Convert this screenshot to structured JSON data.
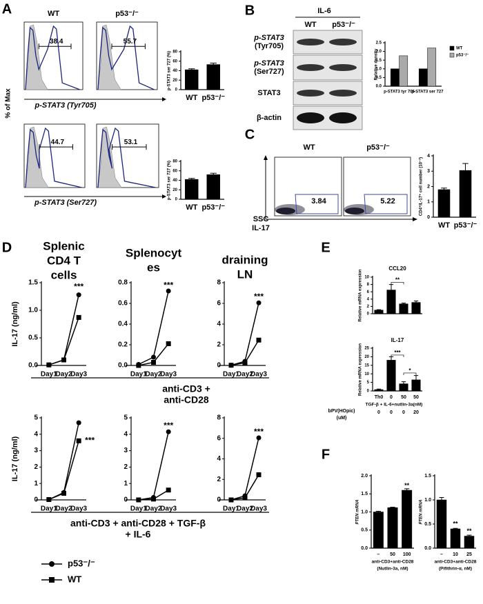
{
  "figure": {
    "panels": [
      "A",
      "B",
      "C",
      "D",
      "E",
      "F"
    ],
    "A": {
      "ylabel": "% of Max",
      "groups": [
        {
          "xlabel": "p-STAT3 (Tyr705)",
          "plots": [
            {
              "label": "WT",
              "gate": 38.4
            },
            {
              "label": "p53⁻/⁻",
              "gate": 55.7
            }
          ]
        },
        {
          "xlabel": "p-STAT3 (Ser727)",
          "plots": [
            {
              "gate": 44.7
            },
            {
              "gate": 53.1
            }
          ]
        }
      ]
    },
    "B": {
      "treatment": "IL-6",
      "columns": [
        "WT",
        "p53⁻/⁻"
      ],
      "rows": [
        [
          "p-STAT3",
          "(Tyr705)"
        ],
        [
          "p-STAT3",
          "(Ser727)"
        ],
        [
          "STAT3"
        ],
        [
          "β-actin"
        ]
      ]
    },
    "C": {
      "columns": [
        "WT",
        "p53⁻/⁻"
      ],
      "gates": [
        3.84,
        5.22
      ],
      "ylabel": "SSC",
      "xlabel": "IL-17"
    },
    "D": {
      "groups": [
        [
          "anti-CD3 +",
          "anti-CD28"
        ],
        [
          "anti-CD3 + anti-CD28 + TGF-β",
          "+ IL-6"
        ]
      ],
      "legend": [
        {
          "name": "p53⁻/⁻",
          "marker": "circle"
        },
        {
          "name": "WT",
          "marker": "square"
        }
      ]
    }
  },
  "chart_data": [
    {
      "type": "bar",
      "ylabel": "p-STAT3 ser 727 (%)",
      "categories": [
        "WT",
        "p53⁻/⁻"
      ],
      "values": [
        42,
        53
      ],
      "errors": [
        2,
        3
      ],
      "color": "#000000",
      "ylim": [
        0,
        80
      ],
      "yticks": [
        0,
        20,
        40,
        60,
        80
      ]
    },
    {
      "type": "bar",
      "ylabel": "p-STAT3 ser 727 (%)",
      "categories": [
        "WT",
        "p53⁻/⁻"
      ],
      "values": [
        42,
        52
      ],
      "errors": [
        2,
        3
      ],
      "color": "#000000",
      "ylim": [
        0,
        80
      ],
      "yticks": [
        0,
        20,
        40,
        60,
        80
      ]
    },
    {
      "type": "bar",
      "ylabel": "Relative density",
      "categories": [
        "p-STAT3 tyr 705",
        "p-STAT3 ser 727"
      ],
      "legend": "right",
      "series": [
        {
          "name": "WT",
          "color": "#000000",
          "values": [
            1.0,
            1.0
          ]
        },
        {
          "name": "p53⁻/⁻",
          "color": "#aaaaaa",
          "values": [
            1.75,
            2.2
          ]
        }
      ],
      "ylim": [
        0,
        2.5
      ],
      "yticks": [
        {
          "value": 0,
          "label": "0.0"
        },
        0.5,
        {
          "value": 1,
          "label": "1.0"
        },
        1.5,
        {
          "value": 2,
          "label": "2.0"
        },
        2.5
      ]
    },
    {
      "type": "bar",
      "ylabel": "CD4⁺IL-17⁺ cell number (10⁻³)",
      "categories": [
        "WT",
        "p53⁻/⁻"
      ],
      "values": [
        1.8,
        3.05
      ],
      "errors": [
        0.1,
        0.45
      ],
      "color": "#000000",
      "ylim": [
        0,
        4
      ],
      "yticks": [
        0,
        1,
        2,
        3,
        4
      ]
    },
    {
      "type": "line",
      "title_lines": [
        "Splenic",
        "CD4 T",
        "cells"
      ],
      "ylabel": "IL-17 (ng/ml)",
      "categories": [
        "Day1",
        "Day2",
        "Day3"
      ],
      "series": [
        {
          "marker": "circle",
          "values": [
            0.01,
            0.1,
            1.28
          ]
        },
        {
          "marker": "square",
          "values": [
            0.01,
            0.1,
            0.87
          ]
        }
      ],
      "annotations": [
        "***"
      ],
      "ylim": [
        0,
        1.5
      ],
      "yticks": [
        {
          "value": 0,
          "label": "0.0"
        },
        0.5,
        {
          "value": 1,
          "label": "1.0"
        },
        1.5
      ]
    },
    {
      "type": "line",
      "title_lines": [
        "Splenocyt",
        "es"
      ],
      "categories": [
        "Day1",
        "Day2",
        "Day3"
      ],
      "series": [
        {
          "marker": "circle",
          "values": [
            0.01,
            0.08,
            0.72
          ]
        },
        {
          "marker": "square",
          "values": [
            0.0,
            0.03,
            0.21
          ]
        }
      ],
      "annotations": [
        "***"
      ],
      "ylim": [
        0,
        0.8
      ],
      "yticks": [
        {
          "value": 0,
          "label": "0.0"
        },
        0.2,
        0.4,
        0.6,
        0.8
      ]
    },
    {
      "type": "line",
      "title_lines": [
        "draining",
        "LN"
      ],
      "categories": [
        "Day1",
        "Day2",
        "Day3"
      ],
      "series": [
        {
          "marker": "circle",
          "values": [
            0.02,
            0.4,
            6.05
          ]
        },
        {
          "marker": "square",
          "values": [
            0.02,
            0.25,
            2.45
          ]
        }
      ],
      "annotations": [
        "***"
      ],
      "ylim": [
        0,
        8
      ],
      "yticks": [
        0,
        2,
        4,
        6,
        8
      ]
    },
    {
      "type": "line",
      "ylabel": "IL-17 (ng/ml)",
      "categories": [
        "Day1",
        "Day2",
        "Day3"
      ],
      "series": [
        {
          "marker": "circle",
          "values": [
            0.02,
            0.45,
            4.7
          ]
        },
        {
          "marker": "square",
          "values": [
            0.02,
            0.4,
            3.6
          ]
        }
      ],
      "annotations": [
        "***"
      ],
      "ylim": [
        0,
        5
      ],
      "yticks": [
        0,
        1,
        2,
        3,
        4,
        5
      ]
    },
    {
      "type": "line",
      "categories": [
        "Day1",
        "Day2",
        "Day3"
      ],
      "series": [
        {
          "marker": "circle",
          "values": [
            0.0,
            0.15,
            4.15
          ]
        },
        {
          "marker": "square",
          "values": [
            0.0,
            0.05,
            0.6
          ]
        }
      ],
      "annotations": [
        "***"
      ],
      "ylim": [
        0,
        5
      ],
      "yticks": [
        0,
        1,
        2,
        3,
        4,
        5
      ]
    },
    {
      "type": "line",
      "categories": [
        "Day1",
        "Day2",
        "Day3"
      ],
      "series": [
        {
          "marker": "circle",
          "values": [
            0.0,
            0.4,
            6.05
          ]
        },
        {
          "marker": "square",
          "values": [
            0.0,
            0.2,
            2.45
          ]
        }
      ],
      "annotations": [
        "***"
      ],
      "ylim": [
        0,
        8
      ],
      "yticks": [
        0,
        2,
        4,
        6,
        8
      ]
    },
    {
      "type": "bar",
      "title": "CCL20",
      "ylabel": "Relative mRNA expression",
      "categories": [
        null,
        null,
        null,
        null
      ],
      "values": [
        1.0,
        6.5,
        2.7,
        3.1
      ],
      "errors": [
        0.1,
        1.5,
        0.2,
        0.4
      ],
      "color": "#000000",
      "annotations": [
        "**"
      ],
      "ylim": [
        0,
        10
      ],
      "yticks": [
        0,
        2,
        4,
        6,
        8,
        10
      ]
    },
    {
      "type": "bar",
      "title": "IL-17",
      "ylabel": "Relative mRNA expression",
      "categories": [
        "Th0",
        "0",
        "50",
        "50"
      ],
      "xlabel": "TGF-β + IL-6+nutlin-3a(nM)",
      "extra_row": {
        "label_lines": [
          "bPV(HOpic)",
          "(uM)"
        ],
        "values": [
          0,
          0,
          0,
          20
        ]
      },
      "values": [
        0.8,
        18,
        4.2,
        6.5
      ],
      "errors": [
        0.3,
        2,
        1.2,
        2.5
      ],
      "color": "#000000",
      "annotations": [
        "***",
        "*"
      ],
      "ylim": [
        0,
        25
      ],
      "yticks": [
        0,
        5,
        10,
        15,
        20,
        25
      ]
    },
    {
      "type": "bar",
      "ylabel": "PTEN mRNA",
      "categories": [
        "–",
        "50",
        "100"
      ],
      "xlabel_lines": [
        "anti-CD3+anti-CD28",
        "(Nutlin-3a, nM)"
      ],
      "values": [
        1.0,
        1.12,
        1.6
      ],
      "errors": [
        0.02,
        0.01,
        0.04
      ],
      "color": "#000000",
      "annotations": [
        "**"
      ],
      "ylim": [
        0,
        2
      ],
      "yticks": [
        {
          "value": 0,
          "label": "0.0"
        },
        0.5,
        {
          "value": 1,
          "label": "1.0"
        },
        1.5,
        {
          "value": 2,
          "label": "2.0"
        }
      ]
    },
    {
      "type": "bar",
      "ylabel": "PTEN mRNA",
      "categories": [
        "–",
        "10",
        "25"
      ],
      "xlabel_lines": [
        "anti-CD3+anti-CD28",
        "(Pifithrin-α, nM)"
      ],
      "values": [
        1.0,
        0.4,
        0.25
      ],
      "errors": [
        0.05,
        0.01,
        0.02
      ],
      "color": "#000000",
      "annotations": [
        "**",
        "**"
      ],
      "ylim": [
        0,
        1.5
      ],
      "yticks": [
        {
          "value": 0,
          "label": "0.0"
        },
        0.5,
        {
          "value": 1,
          "label": "1.0"
        },
        1.5
      ]
    }
  ]
}
